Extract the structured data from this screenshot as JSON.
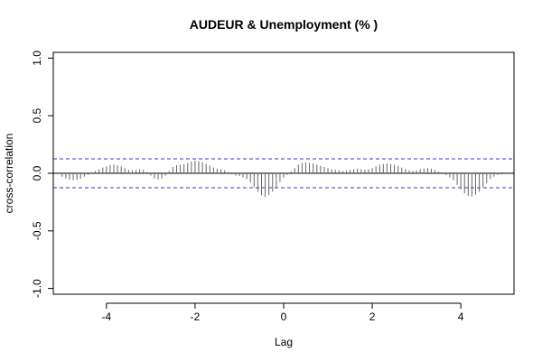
{
  "chart_data": {
    "type": "bar",
    "subtype": "cross-correlogram",
    "title": "AUDEUR & Unemployment (% )",
    "xlabel": "Lag",
    "ylabel": "cross-correlation",
    "xlim": [
      -5.2,
      5.2
    ],
    "ylim": [
      -1.05,
      1.05
    ],
    "x_ticks": [
      -4,
      -2,
      0,
      2,
      4
    ],
    "x_tick_labels": [
      "-4",
      "-2",
      "0",
      "2",
      "4"
    ],
    "y_ticks": [
      -1.0,
      -0.5,
      0.0,
      0.5,
      1.0
    ],
    "y_tick_labels": [
      "-1.0",
      "-0.5",
      "0.0",
      "0.5",
      "1.0"
    ],
    "confidence_band": [
      0.125,
      -0.125
    ],
    "lag_step": 0.0833,
    "lags": [
      -5.0,
      -4.917,
      -4.833,
      -4.75,
      -4.667,
      -4.583,
      -4.5,
      -4.417,
      -4.333,
      -4.25,
      -4.167,
      -4.083,
      -4.0,
      -3.917,
      -3.833,
      -3.75,
      -3.667,
      -3.583,
      -3.5,
      -3.417,
      -3.333,
      -3.25,
      -3.167,
      -3.083,
      -3.0,
      -2.917,
      -2.833,
      -2.75,
      -2.667,
      -2.583,
      -2.5,
      -2.417,
      -2.333,
      -2.25,
      -2.167,
      -2.083,
      -2.0,
      -1.917,
      -1.833,
      -1.75,
      -1.667,
      -1.583,
      -1.5,
      -1.417,
      -1.333,
      -1.25,
      -1.167,
      -1.083,
      -1.0,
      -0.917,
      -0.833,
      -0.75,
      -0.667,
      -0.583,
      -0.5,
      -0.417,
      -0.333,
      -0.25,
      -0.167,
      -0.083,
      0.0,
      0.083,
      0.167,
      0.25,
      0.333,
      0.417,
      0.5,
      0.583,
      0.667,
      0.75,
      0.833,
      0.917,
      1.0,
      1.083,
      1.167,
      1.25,
      1.333,
      1.417,
      1.5,
      1.583,
      1.667,
      1.75,
      1.833,
      1.917,
      2.0,
      2.083,
      2.167,
      2.25,
      2.333,
      2.417,
      2.5,
      2.583,
      2.667,
      2.75,
      2.833,
      2.917,
      3.0,
      3.083,
      3.167,
      3.25,
      3.333,
      3.417,
      3.5,
      3.583,
      3.667,
      3.75,
      3.833,
      3.917,
      4.0,
      4.083,
      4.167,
      4.25,
      4.333,
      4.417,
      4.5,
      4.583,
      4.667,
      4.75,
      4.833,
      4.917,
      5.0
    ],
    "values": [
      -0.03,
      -0.045,
      -0.055,
      -0.06,
      -0.055,
      -0.045,
      -0.03,
      -0.015,
      0.0,
      0.02,
      0.035,
      0.05,
      0.06,
      0.07,
      0.075,
      0.07,
      0.06,
      0.045,
      0.03,
      0.025,
      0.03,
      0.035,
      0.03,
      0.01,
      -0.02,
      -0.045,
      -0.055,
      -0.045,
      -0.02,
      0.02,
      0.055,
      0.07,
      0.075,
      0.08,
      0.09,
      0.1,
      0.11,
      0.105,
      0.095,
      0.08,
      0.065,
      0.05,
      0.04,
      0.035,
      0.025,
      0.01,
      -0.01,
      -0.02,
      -0.025,
      -0.035,
      -0.05,
      -0.08,
      -0.12,
      -0.16,
      -0.19,
      -0.205,
      -0.19,
      -0.16,
      -0.12,
      -0.075,
      -0.04,
      -0.015,
      0.015,
      0.045,
      0.075,
      0.09,
      0.095,
      0.09,
      0.085,
      0.075,
      0.065,
      0.055,
      0.045,
      0.035,
      0.03,
      0.025,
      0.02,
      0.025,
      0.03,
      0.035,
      0.04,
      0.035,
      0.03,
      0.035,
      0.045,
      0.06,
      0.075,
      0.08,
      0.085,
      0.08,
      0.075,
      0.065,
      0.05,
      0.035,
      0.025,
      0.02,
      0.025,
      0.035,
      0.04,
      0.045,
      0.04,
      0.03,
      0.015,
      0.0,
      -0.015,
      -0.035,
      -0.06,
      -0.1,
      -0.14,
      -0.175,
      -0.195,
      -0.2,
      -0.185,
      -0.16,
      -0.12,
      -0.085,
      -0.05,
      -0.03,
      -0.015,
      -0.01,
      -0.005
    ],
    "colors": {
      "bars": "#666666",
      "band": "#3333cc",
      "axis": "#000000",
      "zero_line": "#000000"
    },
    "grid": false,
    "legend": "none"
  }
}
